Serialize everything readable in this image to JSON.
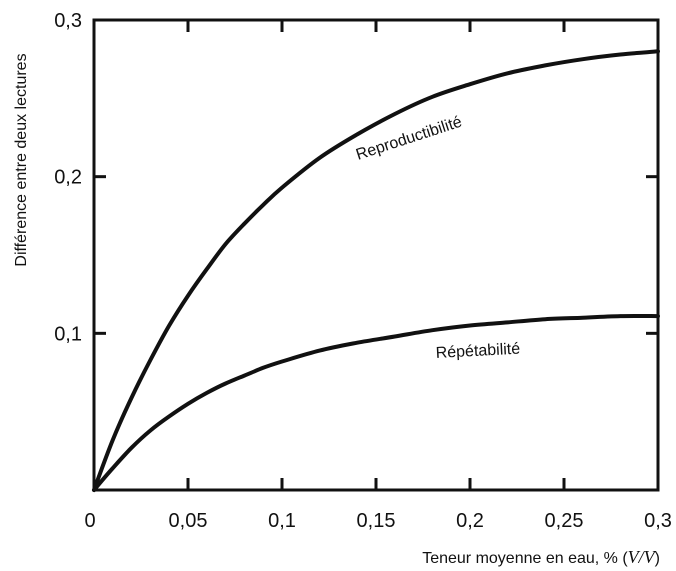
{
  "chart_data": {
    "type": "line",
    "xlabel": "Teneur moyenne en eau, % (V/V)",
    "ylabel": "Différence entre deux lectures",
    "xlim": [
      0,
      0.3
    ],
    "ylim": [
      0,
      0.3
    ],
    "x_ticks": [
      {
        "value": 0,
        "label": "0"
      },
      {
        "value": 0.05,
        "label": "0,05"
      },
      {
        "value": 0.1,
        "label": "0,1"
      },
      {
        "value": 0.15,
        "label": "0,15"
      },
      {
        "value": 0.2,
        "label": "0,2"
      },
      {
        "value": 0.25,
        "label": "0,25"
      },
      {
        "value": 0.3,
        "label": "0,3"
      }
    ],
    "y_ticks": [
      {
        "value": 0.1,
        "label": "0,1"
      },
      {
        "value": 0.2,
        "label": "0,2"
      },
      {
        "value": 0.3,
        "label": "0,3"
      }
    ],
    "grid": false,
    "legend": "none",
    "series": [
      {
        "name": "Reproductibilité",
        "x": [
          0,
          0.01,
          0.02,
          0.03,
          0.04,
          0.05,
          0.06,
          0.07,
          0.08,
          0.09,
          0.1,
          0.12,
          0.14,
          0.16,
          0.18,
          0.2,
          0.22,
          0.24,
          0.26,
          0.28,
          0.3
        ],
        "y": [
          0,
          0.032,
          0.059,
          0.083,
          0.105,
          0.124,
          0.141,
          0.157,
          0.17,
          0.182,
          0.193,
          0.212,
          0.227,
          0.24,
          0.251,
          0.259,
          0.266,
          0.271,
          0.275,
          0.278,
          0.28
        ]
      },
      {
        "name": "Répétabilité",
        "x": [
          0,
          0.01,
          0.02,
          0.03,
          0.04,
          0.05,
          0.06,
          0.07,
          0.08,
          0.09,
          0.1,
          0.12,
          0.14,
          0.16,
          0.18,
          0.2,
          0.22,
          0.24,
          0.26,
          0.28,
          0.3
        ],
        "y": [
          0,
          0.014,
          0.027,
          0.038,
          0.047,
          0.055,
          0.062,
          0.068,
          0.073,
          0.078,
          0.082,
          0.089,
          0.094,
          0.098,
          0.102,
          0.105,
          0.107,
          0.109,
          0.11,
          0.111,
          0.111
        ]
      }
    ]
  }
}
